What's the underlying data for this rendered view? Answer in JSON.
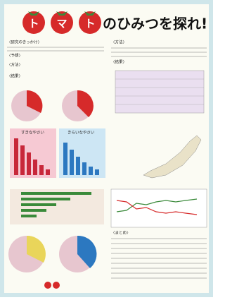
{
  "title": {
    "chars": [
      "ト",
      "マ",
      "ト"
    ],
    "rest": "のひみつを探れ!"
  },
  "left": {
    "reason": "〈研究のきっかけ〉",
    "guess": "〈予想〉",
    "method": "〈方法〉",
    "result": "〈結果〉",
    "like": "すきなやさい",
    "dislike": "きらいなやさい"
  },
  "right": {
    "method": "〈方法〉",
    "result": "〈結果〉",
    "summary": "〈まとめ〉"
  }
}
